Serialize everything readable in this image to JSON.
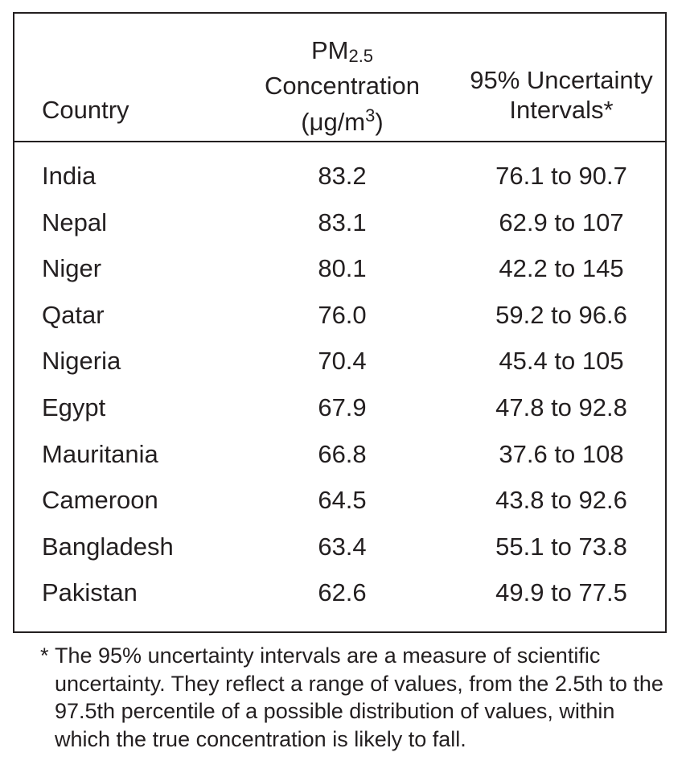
{
  "chart_data": {
    "type": "table",
    "columns": {
      "country": "Country",
      "pm_prefix": "PM",
      "pm_sub": "2.5",
      "pm_line2": "Concentration",
      "pm_unit_base": "(μg/m",
      "pm_unit_sup": "3",
      "pm_unit_close": ")",
      "ui_line1": "95% Uncertainty",
      "ui_line2": "Intervals*"
    },
    "rows": [
      {
        "country": "India",
        "pm25": "83.2",
        "interval": "76.1 to 90.7"
      },
      {
        "country": "Nepal",
        "pm25": "83.1",
        "interval": "62.9 to 107"
      },
      {
        "country": "Niger",
        "pm25": "80.1",
        "interval": "42.2 to 145"
      },
      {
        "country": "Qatar",
        "pm25": "76.0",
        "interval": "59.2 to 96.6"
      },
      {
        "country": "Nigeria",
        "pm25": "70.4",
        "interval": "45.4 to 105"
      },
      {
        "country": "Egypt",
        "pm25": "67.9",
        "interval": "47.8 to 92.8"
      },
      {
        "country": "Mauritania",
        "pm25": "66.8",
        "interval": "37.6 to 108"
      },
      {
        "country": "Cameroon",
        "pm25": "64.5",
        "interval": "43.8 to 92.6"
      },
      {
        "country": "Bangladesh",
        "pm25": "63.4",
        "interval": "55.1 to 73.8"
      },
      {
        "country": "Pakistan",
        "pm25": "62.6",
        "interval": "49.9 to 77.5"
      }
    ],
    "footnote": {
      "marker": "*",
      "text": "The 95% uncertainty intervals are a measure of scientific uncertainty. They reflect a range of values, from the 2.5th to the 97.5th percentile of a possible distribution of values, within which the true concentration is likely to fall."
    }
  }
}
